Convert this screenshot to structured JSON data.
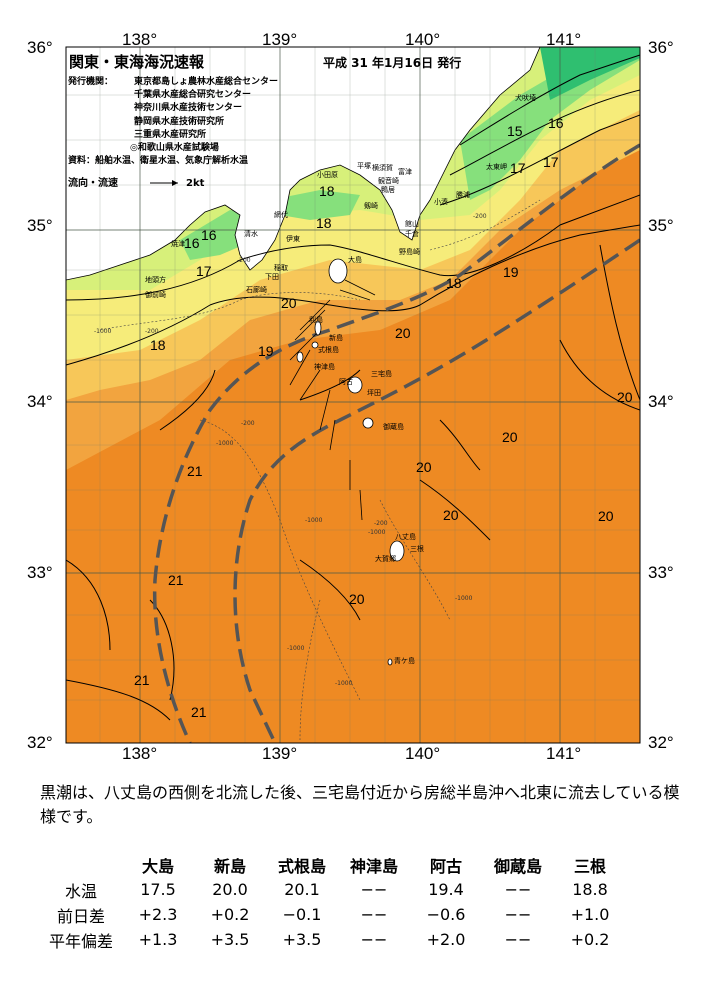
{
  "map": {
    "title": "関東・東海海況速報",
    "issued": "平成 31 年1月16日 発行",
    "agency_label": "発行機関：",
    "agencies": [
      "東京都島しょ農林水産総合センター",
      "千葉県水産総合研究センター",
      "神奈川県水産技術センター",
      "静岡県水産技術研究所",
      "三重県水産研究所",
      "◎和歌山県水産試験場"
    ],
    "data_source": "資料：船舶水温、衛星水温、気象庁解析水温",
    "current_legend_label": "流向・流速",
    "current_legend_scale": "2kt",
    "lon_labels": [
      "138°",
      "139°",
      "140°",
      "141°"
    ],
    "lat_labels": [
      "36°",
      "35°",
      "34°",
      "33°",
      "32°"
    ],
    "isotherm_labels": [
      "15",
      "16",
      "17",
      "18",
      "16",
      "17",
      "18",
      "16",
      "17",
      "18",
      "18",
      "19",
      "20",
      "20",
      "20",
      "19",
      "21",
      "21",
      "20",
      "20",
      "20",
      "20",
      "20",
      "21",
      "21",
      "20",
      "21",
      "20"
    ],
    "depth_labels": [
      "-200",
      "-200",
      "-200",
      "-1000",
      "-200",
      "-1000",
      "-200",
      "-1000",
      "-1000",
      "-1000",
      "-1000",
      "-1000"
    ],
    "places": [
      "犬吠埼",
      "太東岬",
      "勝浦",
      "小湊",
      "平塚",
      "横須賀",
      "観音崎",
      "富津",
      "小田原",
      "鴨居",
      "剱崎",
      "千倉",
      "館山",
      "伊東",
      "野島崎",
      "石廊崎",
      "下田",
      "稲取",
      "大島",
      "焼津",
      "地頭方",
      "御前崎",
      "新島",
      "利島",
      "式根島",
      "神津島",
      "三宅島",
      "阿古",
      "坪田",
      "御蔵島",
      "八丈島",
      "大賀郷",
      "三根",
      "青ケ島",
      "清水",
      "網代"
    ],
    "water_colors": {
      "cold": "#2fbf70",
      "cool": "#86e07c",
      "mild": "#f6ec7a",
      "warm": "#f7c759",
      "warmer": "#f2a43f",
      "hot": "#ee8a23",
      "land": "#ffffff",
      "kuroshio_axis": "#555555"
    }
  },
  "summary": "黒潮は、八丈島の西側を北流した後、三宅島付近から房総半島沖へ北東に流去している模様です。",
  "table": {
    "columns": [
      "大島",
      "新島",
      "式根島",
      "神津島",
      "阿古",
      "御蔵島",
      "三根"
    ],
    "rows": [
      {
        "label": "水温",
        "values": [
          "17.5",
          "20.0",
          "20.1",
          "−−",
          "19.4",
          "−−",
          "18.8"
        ]
      },
      {
        "label": "前日差",
        "values": [
          "+2.3",
          "+0.2",
          "−0.1",
          "−−",
          "−0.6",
          "−−",
          "+1.0"
        ]
      },
      {
        "label": "平年偏差",
        "values": [
          "+1.3",
          "+3.5",
          "+3.5",
          "−−",
          "+2.0",
          "−−",
          "+0.2"
        ]
      }
    ]
  }
}
